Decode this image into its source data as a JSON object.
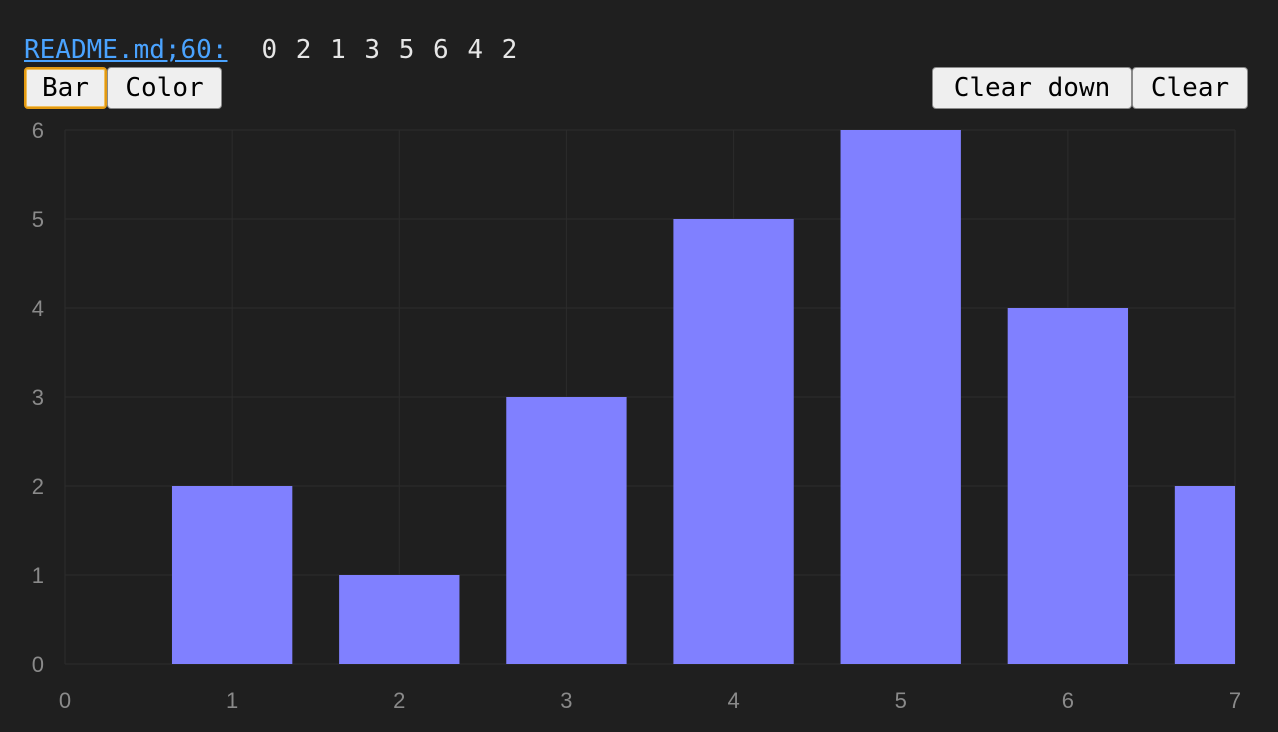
{
  "header": {
    "source_label": "README.md;60:",
    "sequence": "0 2 1 3 5 6 4 2"
  },
  "toolbar": {
    "bar_label": "Bar",
    "color_label": "Color",
    "clear_down_label": "Clear down",
    "clear_label": "Clear"
  },
  "colors": {
    "background": "#1f1f1f",
    "bar_fill": "#8080ff",
    "grid": "#2c2c2c",
    "tick_text": "#8a8a8a",
    "link": "#4aa3ff",
    "focus_ring": "#e39a12"
  },
  "chart_data": {
    "type": "bar",
    "x": [
      0,
      1,
      2,
      3,
      4,
      5,
      6,
      7
    ],
    "values": [
      0,
      2,
      1,
      3,
      5,
      6,
      4,
      2
    ],
    "xlim": [
      0,
      7
    ],
    "ylim": [
      0,
      6
    ],
    "x_ticks": [
      "0",
      "1",
      "2",
      "3",
      "4",
      "5",
      "6",
      "7"
    ],
    "y_ticks": [
      "0",
      "1",
      "2",
      "3",
      "4",
      "5",
      "6"
    ],
    "grid": true,
    "title": "",
    "xlabel": "",
    "ylabel": ""
  }
}
